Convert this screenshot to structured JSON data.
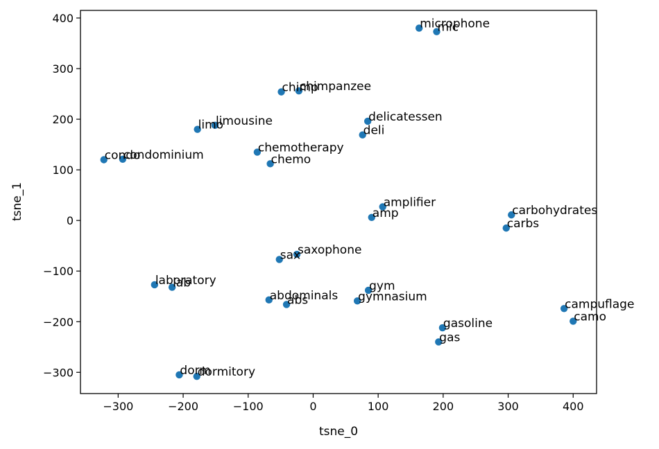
{
  "chart_data": {
    "type": "scatter",
    "title": "",
    "xlabel": "tsne_0",
    "ylabel": "tsne_1",
    "xlim": [
      -358,
      436
    ],
    "ylim": [
      -342,
      415
    ],
    "xticks": [
      -300,
      -200,
      -100,
      0,
      100,
      200,
      300,
      400
    ],
    "yticks": [
      -300,
      -200,
      -100,
      0,
      100,
      200,
      300,
      400
    ],
    "xtick_labels": [
      "−300",
      "−200",
      "−100",
      "0",
      "100",
      "200",
      "300",
      "400"
    ],
    "ytick_labels": [
      "−300",
      "−200",
      "−100",
      "0",
      "100",
      "200",
      "300",
      "400"
    ],
    "grid": false,
    "marker_color": "#1f77b4",
    "points": [
      {
        "label": "microphone",
        "x": 163,
        "y": 380
      },
      {
        "label": "mic",
        "x": 190,
        "y": 373
      },
      {
        "label": "chimp",
        "x": -49,
        "y": 254
      },
      {
        "label": "chimpanzee",
        "x": -22,
        "y": 256
      },
      {
        "label": "delicatessen",
        "x": 84,
        "y": 196
      },
      {
        "label": "deli",
        "x": 76,
        "y": 169
      },
      {
        "label": "limo",
        "x": -178,
        "y": 180
      },
      {
        "label": "limousine",
        "x": -151,
        "y": 188
      },
      {
        "label": "condo",
        "x": -322,
        "y": 120
      },
      {
        "label": "condominium",
        "x": -293,
        "y": 121
      },
      {
        "label": "chemotherapy",
        "x": -86,
        "y": 135
      },
      {
        "label": "chemo",
        "x": -66,
        "y": 112
      },
      {
        "label": "amplifier",
        "x": 107,
        "y": 27
      },
      {
        "label": "amp",
        "x": 90,
        "y": 6
      },
      {
        "label": "carbohydrates",
        "x": 305,
        "y": 11
      },
      {
        "label": "carbs",
        "x": 297,
        "y": -15
      },
      {
        "label": "saxophone",
        "x": -25,
        "y": -67
      },
      {
        "label": "sax",
        "x": -52,
        "y": -77
      },
      {
        "label": "laboratory",
        "x": -244,
        "y": -127
      },
      {
        "label": "lab",
        "x": -217,
        "y": -132
      },
      {
        "label": "abdominals",
        "x": -68,
        "y": -157
      },
      {
        "label": "abs",
        "x": -41,
        "y": -166
      },
      {
        "label": "gym",
        "x": 85,
        "y": -138
      },
      {
        "label": "gymnasium",
        "x": 68,
        "y": -159
      },
      {
        "label": "campuflage",
        "x": 386,
        "y": -174
      },
      {
        "label": "camo",
        "x": 400,
        "y": -199
      },
      {
        "label": "gasoline",
        "x": 199,
        "y": -212
      },
      {
        "label": "gas",
        "x": 193,
        "y": -240
      },
      {
        "label": "dorm",
        "x": -206,
        "y": -305
      },
      {
        "label": "dormitory",
        "x": -179,
        "y": -308
      }
    ]
  }
}
